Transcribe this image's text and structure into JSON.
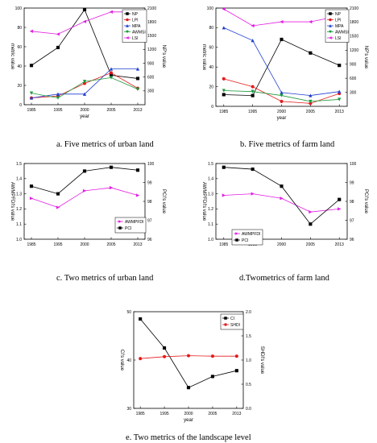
{
  "chart_data": [
    {
      "id": "a",
      "type": "line",
      "caption": "a. Five metrics of urban land",
      "xlabel": "year",
      "ylabel_left": "metric value",
      "ylabel_right": "NP's value",
      "x": [
        1985,
        1995,
        2000,
        2005,
        2013
      ],
      "ylim_left": [
        0,
        100
      ],
      "yticks_left": [
        0,
        20,
        40,
        60,
        80,
        100
      ],
      "ylim_right": [
        0,
        2100
      ],
      "yticks_right": [
        300,
        600,
        900,
        1200,
        1500,
        1800,
        2100
      ],
      "legend_position": "top-right",
      "series": [
        {
          "name": "NP",
          "axis": "right",
          "color": "#000000",
          "marker": "square",
          "values": [
            853,
            1243,
            2065,
            640,
            570
          ]
        },
        {
          "name": "LPI",
          "axis": "left",
          "color": "#e41a1c",
          "marker": "circle",
          "values": [
            7,
            9,
            22,
            33,
            17
          ]
        },
        {
          "name": "MPA",
          "axis": "left",
          "color": "#1f3fd0",
          "marker": "triangle-up",
          "values": [
            7,
            11,
            11,
            37,
            37
          ]
        },
        {
          "name": "AWMSI",
          "axis": "left",
          "color": "#1a9a3a",
          "marker": "triangle-down",
          "values": [
            12,
            7,
            24,
            28,
            16
          ]
        },
        {
          "name": "LSI",
          "axis": "left",
          "color": "#e31ce3",
          "marker": "triangle-left",
          "values": [
            76,
            73,
            86,
            96,
            96
          ]
        }
      ]
    },
    {
      "id": "b",
      "type": "line",
      "caption": "b. Five metrics of farm land",
      "xlabel": "year",
      "ylabel_left": "metric value",
      "ylabel_right": "NP's value",
      "x": [
        1985,
        1995,
        2000,
        2005,
        2013
      ],
      "ylim_left": [
        0,
        100
      ],
      "yticks_left": [
        0,
        20,
        40,
        60,
        80,
        100
      ],
      "ylim_right": [
        0,
        2100
      ],
      "yticks_right": [
        300,
        600,
        900,
        1200,
        1500,
        1800,
        2100
      ],
      "legend_position": "top-right",
      "series": [
        {
          "name": "NP",
          "axis": "right",
          "color": "#000000",
          "marker": "square",
          "values": [
            250,
            230,
            1430,
            1140,
            875
          ]
        },
        {
          "name": "LPI",
          "axis": "left",
          "color": "#e41a1c",
          "marker": "circle",
          "values": [
            28,
            20,
            5,
            3,
            13
          ]
        },
        {
          "name": "MPA",
          "axis": "left",
          "color": "#1f3fd0",
          "marker": "triangle-up",
          "values": [
            80,
            67,
            14,
            11,
            15
          ]
        },
        {
          "name": "AWMSI",
          "axis": "left",
          "color": "#1a9a3a",
          "marker": "triangle-down",
          "values": [
            16,
            15,
            11,
            5,
            7
          ]
        },
        {
          "name": "LSI",
          "axis": "left",
          "color": "#e31ce3",
          "marker": "triangle-left",
          "values": [
            99,
            82,
            86,
            86,
            92
          ]
        }
      ]
    },
    {
      "id": "c",
      "type": "line",
      "caption": "c. Two metrics of urban land",
      "xlabel": "",
      "ylabel_left": "AWMPFDI's value",
      "ylabel_right": "PCI's value",
      "x": [
        1985,
        1995,
        2000,
        2005,
        2013
      ],
      "ylim_left": [
        1.0,
        1.5
      ],
      "yticks_left": [
        1.0,
        1.1,
        1.2,
        1.3,
        1.4,
        1.5
      ],
      "ylim_right": [
        96,
        100
      ],
      "yticks_right": [
        96,
        97,
        98,
        99,
        100
      ],
      "legend_position": "bottom-right",
      "series": [
        {
          "name": "AWMPFDI",
          "axis": "left",
          "color": "#e31ce3",
          "marker": "triangle-right",
          "values": [
            1.27,
            1.21,
            1.32,
            1.34,
            1.29
          ]
        },
        {
          "name": "PCI",
          "axis": "right",
          "color": "#000000",
          "marker": "square",
          "values": [
            98.8,
            98.4,
            99.6,
            99.8,
            99.65
          ]
        }
      ]
    },
    {
      "id": "d",
      "type": "line",
      "caption": "d.Twometrics of farm land",
      "xlabel": "",
      "ylabel_left": "AWMPFDI's value",
      "ylabel_right": "PCI's value",
      "x": [
        1985,
        1995,
        2000,
        2005,
        2013
      ],
      "ylim_left": [
        1.0,
        1.5
      ],
      "yticks_left": [
        1.0,
        1.1,
        1.2,
        1.3,
        1.4,
        1.5
      ],
      "ylim_right": [
        96,
        100
      ],
      "yticks_right": [
        96,
        97,
        98,
        99,
        100
      ],
      "legend_position": "bottom-left",
      "series": [
        {
          "name": "AWMPFDI",
          "axis": "left",
          "color": "#e31ce3",
          "marker": "triangle-right",
          "values": [
            1.29,
            1.3,
            1.27,
            1.18,
            1.2
          ]
        },
        {
          "name": "PCI",
          "axis": "right",
          "color": "#000000",
          "marker": "square",
          "values": [
            99.8,
            99.7,
            98.8,
            96.8,
            98.1
          ]
        }
      ]
    },
    {
      "id": "e",
      "type": "line",
      "caption": "e. Two metrics of the landscape level",
      "xlabel": "year",
      "ylabel_left": "CI's value",
      "ylabel_right": "SHDI's value",
      "x": [
        1985,
        1995,
        2000,
        2005,
        2013
      ],
      "ylim_left": [
        30,
        50
      ],
      "yticks_left": [
        30,
        40,
        50
      ],
      "ylim_right": [
        0,
        2.0
      ],
      "yticks_right": [
        0.0,
        0.5,
        1.0,
        1.5,
        2.0
      ],
      "legend_position": "top-right",
      "series": [
        {
          "name": "CI",
          "axis": "left",
          "color": "#000000",
          "marker": "square",
          "values": [
            48.5,
            42.5,
            34.3,
            36.6,
            37.8
          ]
        },
        {
          "name": "SHDI",
          "axis": "right",
          "color": "#e41a1c",
          "marker": "circle",
          "values": [
            1.03,
            1.07,
            1.09,
            1.08,
            1.08
          ]
        }
      ]
    }
  ]
}
